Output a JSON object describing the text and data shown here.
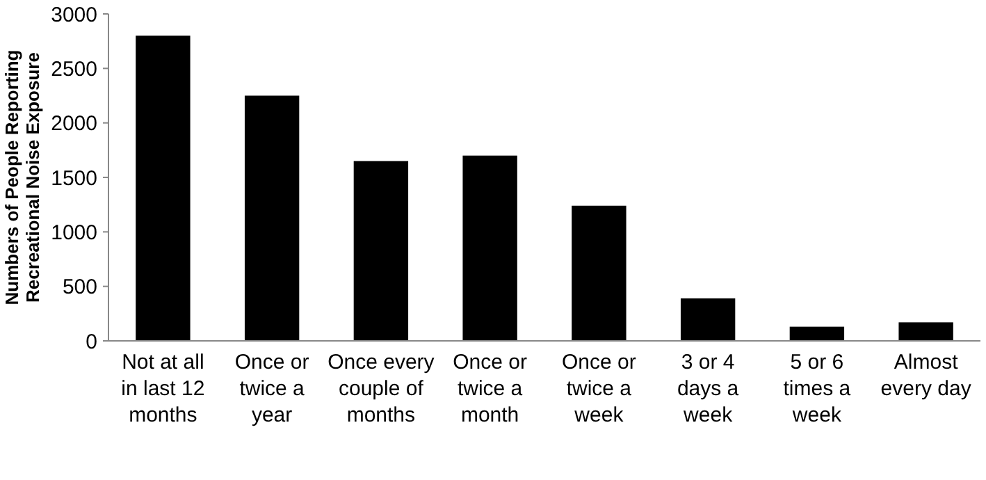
{
  "chart_data": {
    "type": "bar",
    "ylabel": "Numbers of People Reporting\nRecreational Noise Exposure",
    "categories": [
      "Not at all in last 12 months",
      "Once or twice a year",
      "Once every couple of months",
      "Once or twice a month",
      "Once or twice a week",
      "3 or 4 days a week",
      "5 or 6 times a week",
      "Almost every day"
    ],
    "values": [
      2800,
      2250,
      1650,
      1700,
      1240,
      390,
      130,
      170
    ],
    "color": "#000000",
    "ylim": [
      0,
      3000
    ],
    "yticks": [
      0,
      500,
      1000,
      1500,
      2000,
      2500,
      3000
    ],
    "grid": false
  }
}
